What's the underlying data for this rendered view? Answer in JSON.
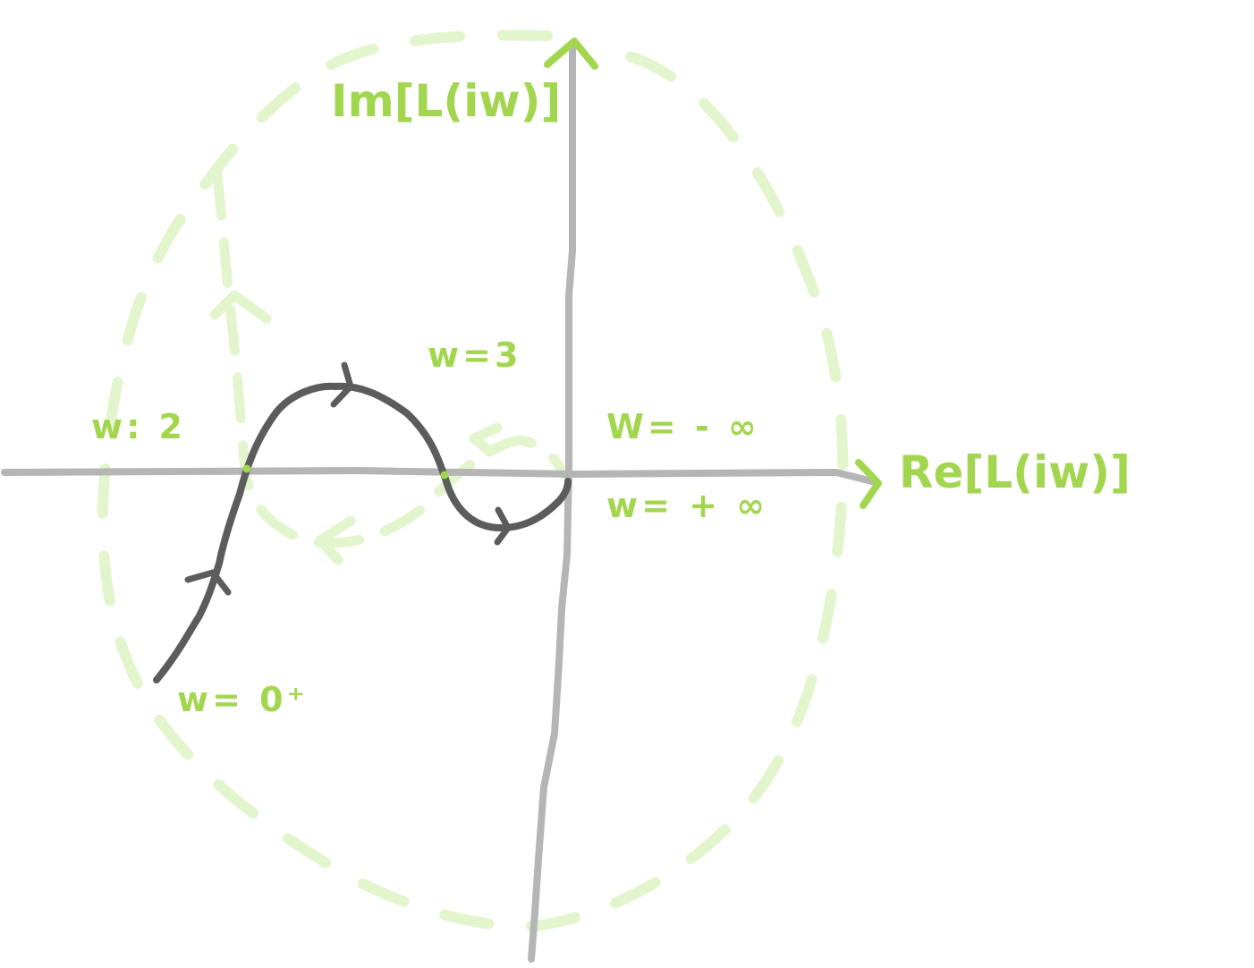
{
  "axes": {
    "real": {
      "label": "Re[L(iw)]"
    },
    "imaginary": {
      "label": "Im[L(iw)]"
    }
  },
  "annotations": {
    "w_eq_2": "w: 2",
    "w_eq_3": "w=3",
    "w_neg_inf": "W= - ∞",
    "w_pos_inf": "w= + ∞",
    "w_zero_plus": "w= 0⁺"
  },
  "colors": {
    "axis": "#b5b5b5",
    "curve": "#5c5c5c",
    "label": "#a3d64f",
    "contour": "#e3f5cc"
  }
}
